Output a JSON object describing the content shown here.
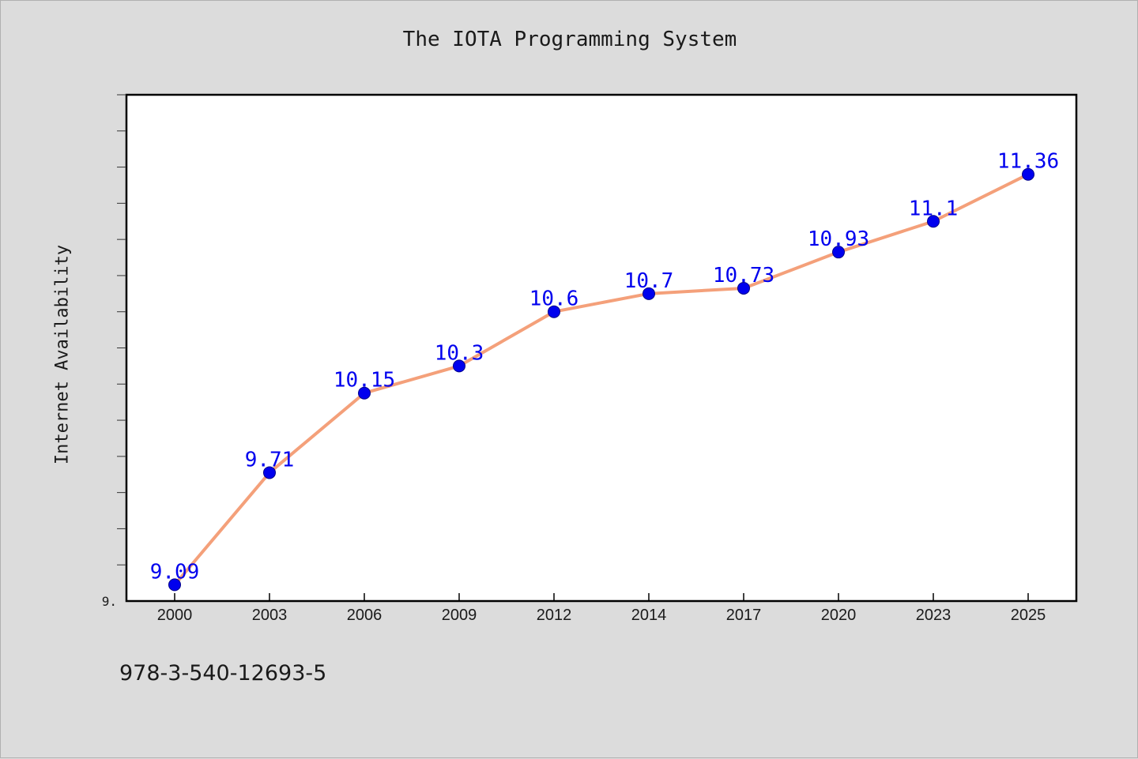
{
  "chart_data": {
    "type": "line",
    "title": "The IOTA Programming System",
    "xlabel": "",
    "ylabel": "Internet Availability",
    "categories": [
      "2000",
      "2003",
      "2006",
      "2009",
      "2012",
      "2014",
      "2017",
      "2020",
      "2023",
      "2025"
    ],
    "series": [
      {
        "values": [
          9.09,
          9.71,
          10.15,
          10.3,
          10.6,
          10.7,
          10.73,
          10.93,
          11.1,
          11.36
        ]
      }
    ],
    "data_labels": [
      "9.09",
      "9.71",
      "10.15",
      "10.3",
      "10.6",
      "10.7",
      "10.73",
      "10.93",
      "11.1",
      "11.36"
    ],
    "ytick_label": "9.",
    "ylim": [
      9.0,
      11.8
    ],
    "grid": false,
    "colors": {
      "line": "#f4a07a",
      "marker": "#0000ee",
      "label": "#0000ee"
    }
  },
  "footnote": "978-3-540-12693-5"
}
